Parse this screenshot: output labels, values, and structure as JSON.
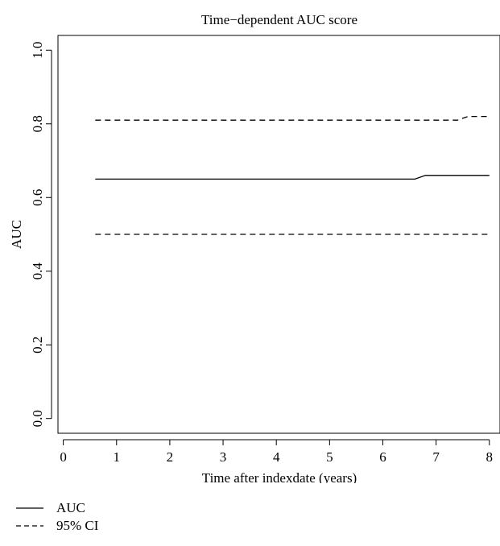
{
  "chart_data": {
    "type": "line",
    "title": "Time−dependent AUC score",
    "xlabel": "Time after indexdate (years)",
    "ylabel": "AUC",
    "xlim": [
      -0.1,
      8.2
    ],
    "ylim": [
      -0.04,
      1.04
    ],
    "xticks": [
      0,
      1,
      2,
      3,
      4,
      5,
      6,
      7,
      8
    ],
    "yticks": [
      0.0,
      0.2,
      0.4,
      0.6,
      0.8,
      1.0
    ],
    "ytick_labels": [
      "0.0",
      "0.2",
      "0.4",
      "0.6",
      "0.8",
      "1.0"
    ],
    "grid": false,
    "legend_position": "bottom-left, below plot",
    "series": [
      {
        "name": "AUC",
        "style": "solid",
        "x": [
          0.6,
          6.6,
          6.8,
          8.0
        ],
        "y": [
          0.65,
          0.65,
          0.66,
          0.66
        ]
      },
      {
        "name": "95% CI",
        "style": "dashed",
        "x": [
          0.6,
          7.4,
          7.6,
          8.0
        ],
        "y": [
          0.81,
          0.81,
          0.82,
          0.82
        ]
      },
      {
        "name": "95% CI",
        "style": "dashed",
        "legend": false,
        "x": [
          0.6,
          8.0
        ],
        "y": [
          0.5,
          0.5
        ]
      }
    ]
  },
  "legend": {
    "items": [
      {
        "label": "AUC",
        "style": "solid"
      },
      {
        "label": "95% CI",
        "style": "dashed"
      }
    ]
  }
}
